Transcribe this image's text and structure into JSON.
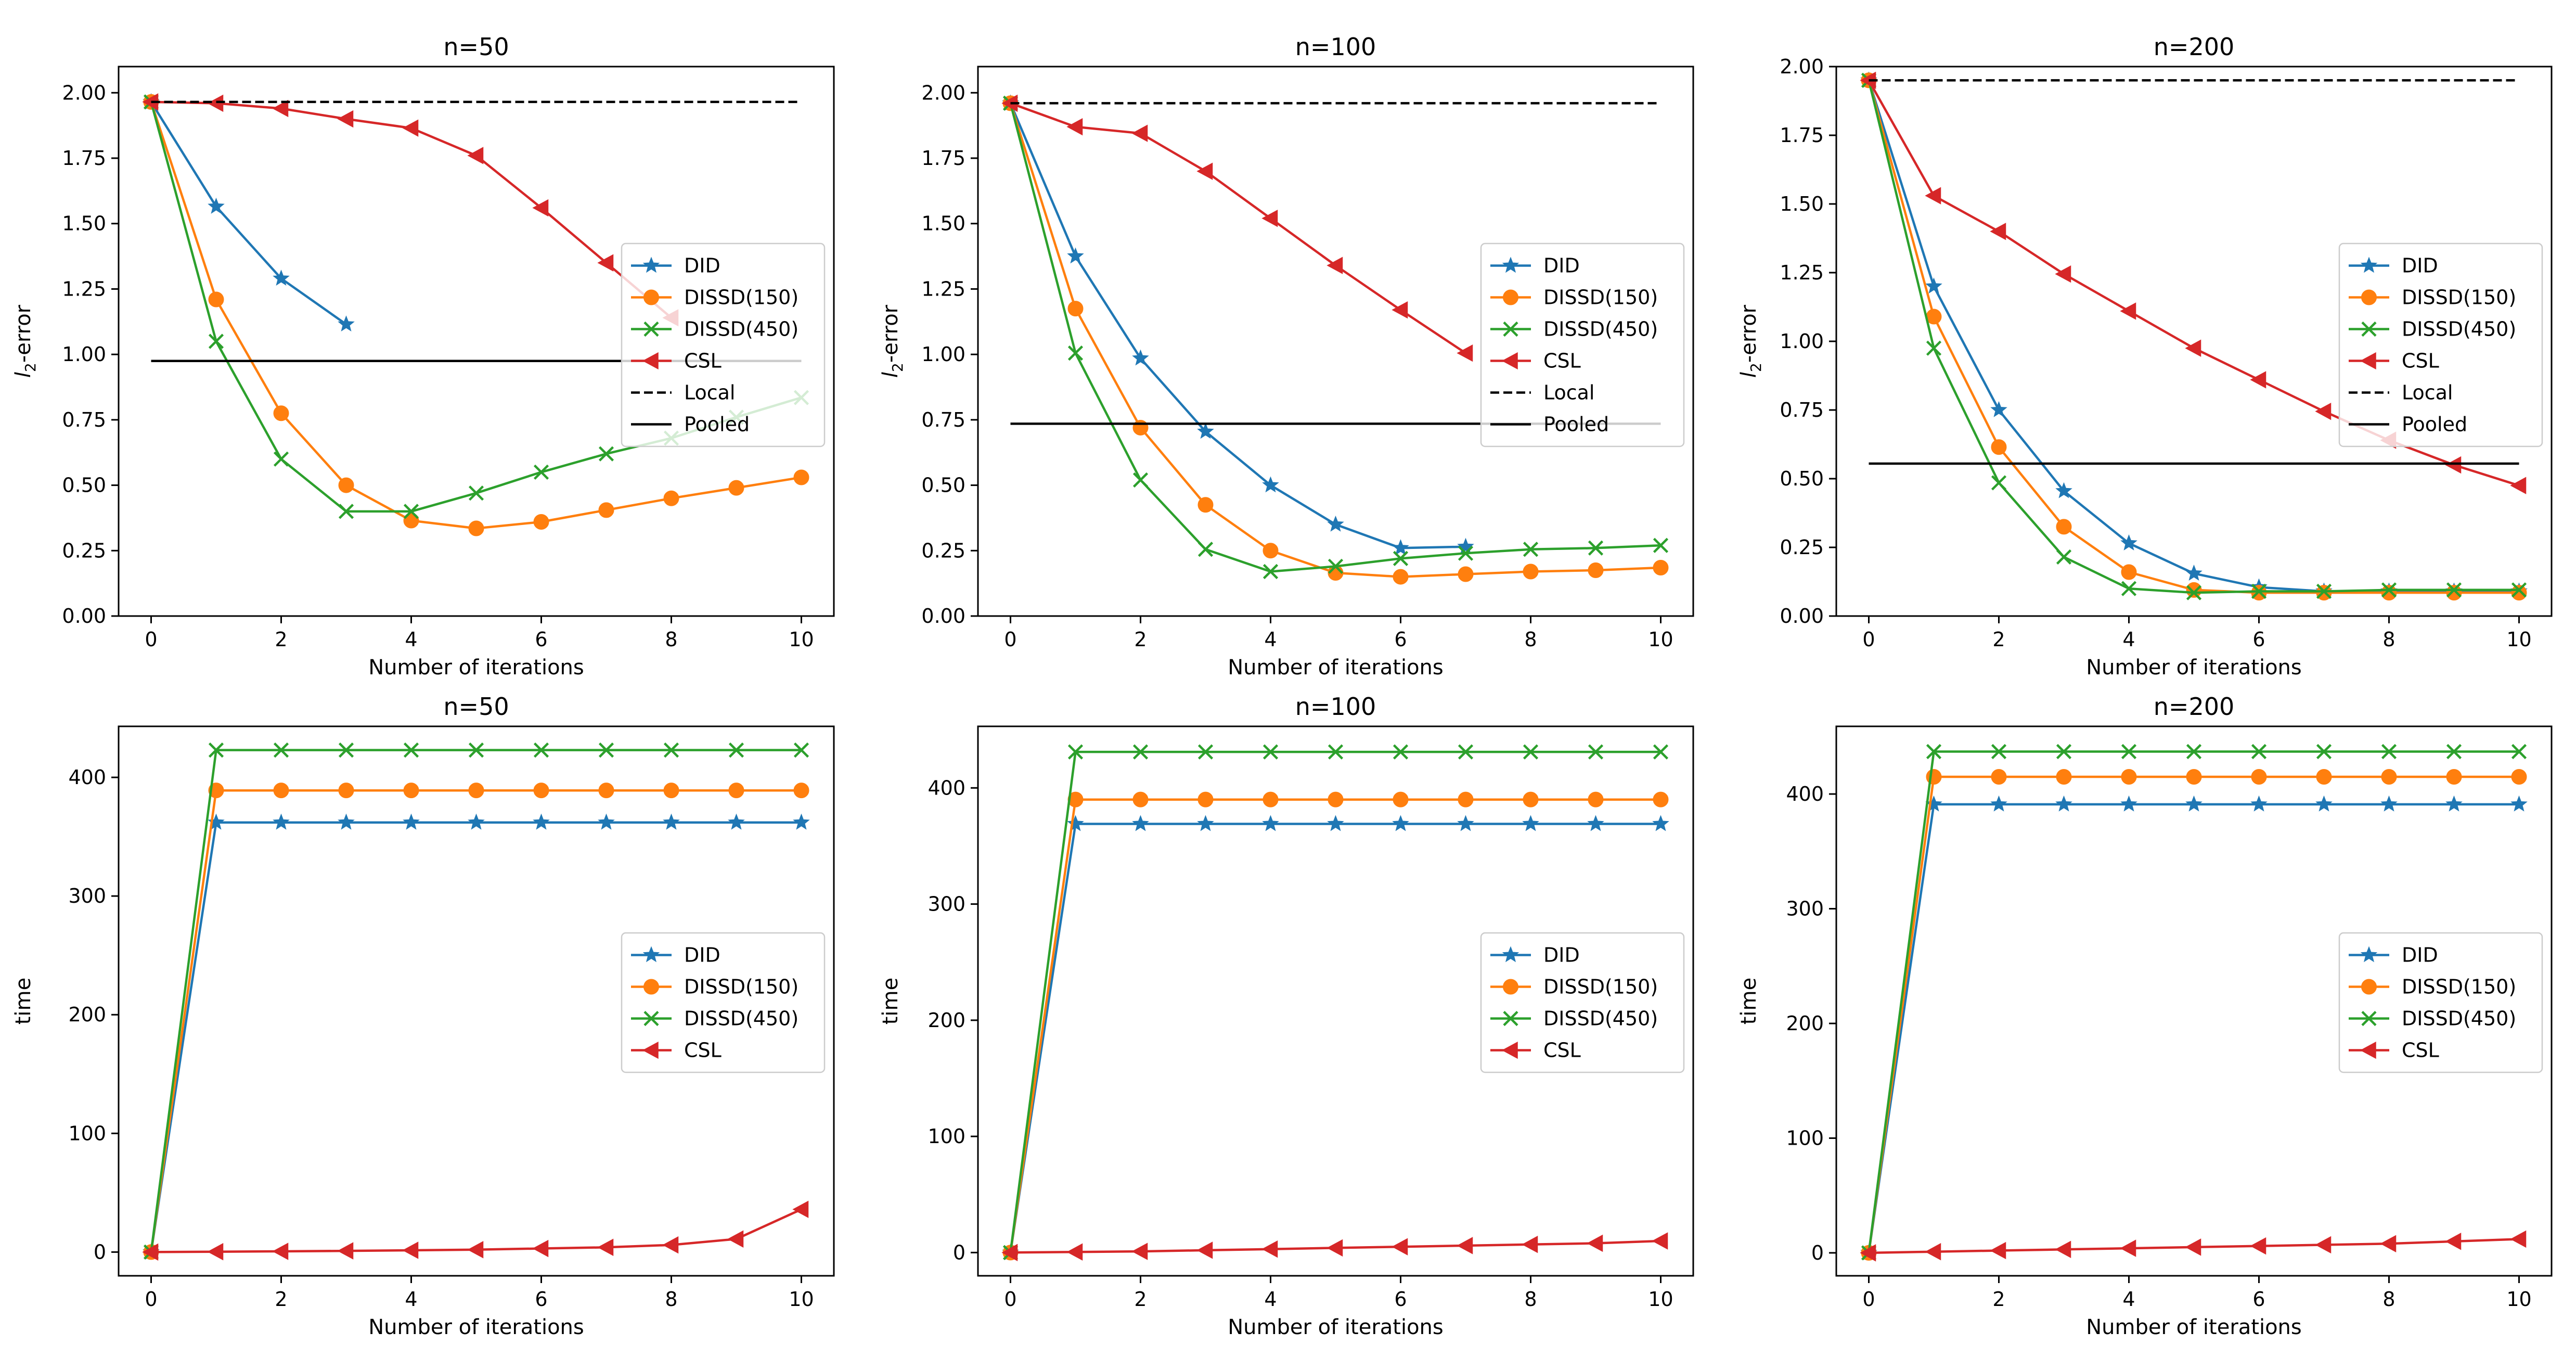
{
  "figure": {
    "colors": {
      "DID": "#1f77b4",
      "DISSD(150)": "#ff7f0e",
      "DISSD(450)": "#2ca02c",
      "CSL": "#d62728",
      "Local": "#000000",
      "Pooled": "#000000"
    },
    "markers": {
      "DID": "star",
      "DISSD(150)": "circle",
      "DISSD(450)": "x",
      "CSL": "triangle-left"
    }
  },
  "chart_data": [
    {
      "type": "line",
      "title": "n=50",
      "xlabel": "Number of iterations",
      "ylabel_main": "l",
      "ylabel_sub": "2",
      "ylabel_suffix": "-error",
      "xlim": [
        -0.5,
        10.5
      ],
      "ylim": [
        0,
        2.1
      ],
      "xticks": [
        0,
        2,
        4,
        6,
        8,
        10
      ],
      "xtick_labels": [
        "0",
        "2",
        "4",
        "6",
        "8",
        "10"
      ],
      "yticks": [
        0,
        0.25,
        0.5,
        0.75,
        1.0,
        1.25,
        1.5,
        1.75,
        2.0
      ],
      "ytick_labels": [
        "0.00",
        "0.25",
        "0.50",
        "0.75",
        "1.00",
        "1.25",
        "1.50",
        "1.75",
        "2.00"
      ],
      "legend_position": "center-right",
      "series": [
        {
          "name": "DID",
          "x": [
            0,
            1,
            2,
            3
          ],
          "values": [
            1.965,
            1.565,
            1.29,
            1.115
          ]
        },
        {
          "name": "DISSD(150)",
          "x": [
            0,
            1,
            2,
            3,
            4,
            5,
            6,
            7,
            8,
            9,
            10
          ],
          "values": [
            1.965,
            1.21,
            0.775,
            0.5,
            0.365,
            0.335,
            0.36,
            0.405,
            0.45,
            0.49,
            0.53
          ]
        },
        {
          "name": "DISSD(450)",
          "x": [
            0,
            1,
            2,
            3,
            4,
            5,
            6,
            7,
            8,
            9,
            10
          ],
          "values": [
            1.965,
            1.05,
            0.6,
            0.4,
            0.4,
            0.47,
            0.55,
            0.62,
            0.68,
            0.76,
            0.835
          ]
        },
        {
          "name": "CSL",
          "x": [
            0,
            1,
            2,
            3,
            4,
            5,
            6,
            7,
            8
          ],
          "values": [
            1.965,
            1.96,
            1.94,
            1.9,
            1.865,
            1.76,
            1.56,
            1.35,
            1.14
          ]
        },
        {
          "name": "Local",
          "x": [
            0,
            10
          ],
          "values": [
            1.965,
            1.965
          ],
          "style": "dashed"
        },
        {
          "name": "Pooled",
          "x": [
            0,
            10
          ],
          "values": [
            0.975,
            0.975
          ],
          "style": "solid"
        }
      ]
    },
    {
      "type": "line",
      "title": "n=100",
      "xlabel": "Number of iterations",
      "ylabel_main": "l",
      "ylabel_sub": "2",
      "ylabel_suffix": "-error",
      "xlim": [
        -0.5,
        10.5
      ],
      "ylim": [
        0,
        2.1
      ],
      "xticks": [
        0,
        2,
        4,
        6,
        8,
        10
      ],
      "xtick_labels": [
        "0",
        "2",
        "4",
        "6",
        "8",
        "10"
      ],
      "yticks": [
        0,
        0.25,
        0.5,
        0.75,
        1.0,
        1.25,
        1.5,
        1.75,
        2.0
      ],
      "ytick_labels": [
        "0.00",
        "0.25",
        "0.50",
        "0.75",
        "1.00",
        "1.25",
        "1.50",
        "1.75",
        "2.00"
      ],
      "legend_position": "center-right",
      "series": [
        {
          "name": "DID",
          "x": [
            0,
            1,
            2,
            3,
            4,
            5,
            6,
            7
          ],
          "values": [
            1.96,
            1.375,
            0.985,
            0.705,
            0.5,
            0.35,
            0.26,
            0.265
          ]
        },
        {
          "name": "DISSD(150)",
          "x": [
            0,
            1,
            2,
            3,
            4,
            5,
            6,
            7,
            8,
            9,
            10
          ],
          "values": [
            1.96,
            1.175,
            0.72,
            0.425,
            0.25,
            0.165,
            0.15,
            0.16,
            0.17,
            0.175,
            0.185
          ]
        },
        {
          "name": "DISSD(450)",
          "x": [
            0,
            1,
            2,
            3,
            4,
            5,
            6,
            7,
            8,
            9,
            10
          ],
          "values": [
            1.96,
            1.005,
            0.52,
            0.255,
            0.17,
            0.19,
            0.22,
            0.24,
            0.255,
            0.26,
            0.27
          ]
        },
        {
          "name": "CSL",
          "x": [
            0,
            1,
            2,
            3,
            4,
            5,
            6,
            7
          ],
          "values": [
            1.96,
            1.87,
            1.845,
            1.7,
            1.52,
            1.34,
            1.17,
            1.005
          ]
        },
        {
          "name": "Local",
          "x": [
            0,
            10
          ],
          "values": [
            1.96,
            1.96
          ],
          "style": "dashed"
        },
        {
          "name": "Pooled",
          "x": [
            0,
            10
          ],
          "values": [
            0.735,
            0.735
          ],
          "style": "solid"
        }
      ]
    },
    {
      "type": "line",
      "title": "n=200",
      "xlabel": "Number of iterations",
      "ylabel_main": "l",
      "ylabel_sub": "2",
      "ylabel_suffix": "-error",
      "xlim": [
        -0.5,
        10.5
      ],
      "ylim": [
        0,
        2.0
      ],
      "xticks": [
        0,
        2,
        4,
        6,
        8,
        10
      ],
      "xtick_labels": [
        "0",
        "2",
        "4",
        "6",
        "8",
        "10"
      ],
      "yticks": [
        0,
        0.25,
        0.5,
        0.75,
        1.0,
        1.25,
        1.5,
        1.75,
        2.0
      ],
      "ytick_labels": [
        "0.00",
        "0.25",
        "0.50",
        "0.75",
        "1.00",
        "1.25",
        "1.50",
        "1.75",
        "2.00"
      ],
      "legend_position": "center-right",
      "series": [
        {
          "name": "DID",
          "x": [
            0,
            1,
            2,
            3,
            4,
            5,
            6,
            7,
            8,
            9,
            10
          ],
          "values": [
            1.95,
            1.2,
            0.75,
            0.455,
            0.265,
            0.155,
            0.105,
            0.09,
            0.09,
            0.09,
            0.09
          ]
        },
        {
          "name": "DISSD(150)",
          "x": [
            0,
            1,
            2,
            3,
            4,
            5,
            6,
            7,
            8,
            9,
            10
          ],
          "values": [
            1.95,
            1.09,
            0.615,
            0.325,
            0.16,
            0.095,
            0.085,
            0.085,
            0.085,
            0.085,
            0.085
          ]
        },
        {
          "name": "DISSD(450)",
          "x": [
            0,
            1,
            2,
            3,
            4,
            5,
            6,
            7,
            8,
            9,
            10
          ],
          "values": [
            1.95,
            0.975,
            0.485,
            0.215,
            0.1,
            0.085,
            0.09,
            0.09,
            0.095,
            0.095,
            0.095
          ]
        },
        {
          "name": "CSL",
          "x": [
            0,
            1,
            2,
            3,
            4,
            5,
            6,
            7,
            8,
            9,
            10
          ],
          "values": [
            1.95,
            1.53,
            1.4,
            1.245,
            1.11,
            0.975,
            0.86,
            0.745,
            0.64,
            0.55,
            0.475
          ]
        },
        {
          "name": "Local",
          "x": [
            0,
            10
          ],
          "values": [
            1.95,
            1.95
          ],
          "style": "dashed"
        },
        {
          "name": "Pooled",
          "x": [
            0,
            10
          ],
          "values": [
            0.555,
            0.555
          ],
          "style": "solid"
        }
      ]
    },
    {
      "type": "line",
      "title": "n=50",
      "xlabel": "Number of iterations",
      "ylabel_main": "time",
      "xlim": [
        -0.5,
        10.5
      ],
      "ylim": [
        -20,
        443
      ],
      "xticks": [
        0,
        2,
        4,
        6,
        8,
        10
      ],
      "xtick_labels": [
        "0",
        "2",
        "4",
        "6",
        "8",
        "10"
      ],
      "yticks": [
        0,
        100,
        200,
        300,
        400
      ],
      "ytick_labels": [
        "0",
        "100",
        "200",
        "300",
        "400"
      ],
      "legend_position": "center-right",
      "series": [
        {
          "name": "DID",
          "x": [
            0,
            1,
            2,
            3,
            4,
            5,
            6,
            7,
            8,
            9,
            10
          ],
          "values": [
            0,
            362,
            362,
            362,
            362,
            362,
            362,
            362,
            362,
            362,
            362
          ]
        },
        {
          "name": "DISSD(150)",
          "x": [
            0,
            1,
            2,
            3,
            4,
            5,
            6,
            7,
            8,
            9,
            10
          ],
          "values": [
            0,
            389,
            389,
            389,
            389,
            389,
            389,
            389,
            389,
            389,
            389
          ]
        },
        {
          "name": "DISSD(450)",
          "x": [
            0,
            1,
            2,
            3,
            4,
            5,
            6,
            7,
            8,
            9,
            10
          ],
          "values": [
            0,
            423,
            423,
            423,
            423,
            423,
            423,
            423,
            423,
            423,
            423
          ]
        },
        {
          "name": "CSL",
          "x": [
            0,
            1,
            2,
            3,
            4,
            5,
            6,
            7,
            8,
            9,
            10
          ],
          "values": [
            0,
            0.3,
            0.6,
            1,
            1.5,
            2,
            3,
            4,
            6,
            11,
            36
          ]
        }
      ]
    },
    {
      "type": "line",
      "title": "n=100",
      "xlabel": "Number of iterations",
      "ylabel_main": "time",
      "xlim": [
        -0.5,
        10.5
      ],
      "ylim": [
        -20,
        453
      ],
      "xticks": [
        0,
        2,
        4,
        6,
        8,
        10
      ],
      "xtick_labels": [
        "0",
        "2",
        "4",
        "6",
        "8",
        "10"
      ],
      "yticks": [
        0,
        100,
        200,
        300,
        400
      ],
      "ytick_labels": [
        "0",
        "100",
        "200",
        "300",
        "400"
      ],
      "legend_position": "center-right",
      "series": [
        {
          "name": "DID",
          "x": [
            0,
            1,
            2,
            3,
            4,
            5,
            6,
            7,
            8,
            9,
            10
          ],
          "values": [
            0,
            369,
            369,
            369,
            369,
            369,
            369,
            369,
            369,
            369,
            369
          ]
        },
        {
          "name": "DISSD(150)",
          "x": [
            0,
            1,
            2,
            3,
            4,
            5,
            6,
            7,
            8,
            9,
            10
          ],
          "values": [
            0,
            390,
            390,
            390,
            390,
            390,
            390,
            390,
            390,
            390,
            390
          ]
        },
        {
          "name": "DISSD(450)",
          "x": [
            0,
            1,
            2,
            3,
            4,
            5,
            6,
            7,
            8,
            9,
            10
          ],
          "values": [
            0,
            431,
            431,
            431,
            431,
            431,
            431,
            431,
            431,
            431,
            431
          ]
        },
        {
          "name": "CSL",
          "x": [
            0,
            1,
            2,
            3,
            4,
            5,
            6,
            7,
            8,
            9,
            10
          ],
          "values": [
            0,
            0.5,
            1,
            2,
            3,
            4,
            5,
            6,
            7,
            8,
            10
          ]
        }
      ]
    },
    {
      "type": "line",
      "title": "n=200",
      "xlabel": "Number of iterations",
      "ylabel_main": "time",
      "xlim": [
        -0.5,
        10.5
      ],
      "ylim": [
        -20,
        459
      ],
      "xticks": [
        0,
        2,
        4,
        6,
        8,
        10
      ],
      "xtick_labels": [
        "0",
        "2",
        "4",
        "6",
        "8",
        "10"
      ],
      "yticks": [
        0,
        100,
        200,
        300,
        400
      ],
      "ytick_labels": [
        "0",
        "100",
        "200",
        "300",
        "400"
      ],
      "legend_position": "center-right",
      "series": [
        {
          "name": "DID",
          "x": [
            0,
            1,
            2,
            3,
            4,
            5,
            6,
            7,
            8,
            9,
            10
          ],
          "values": [
            0,
            391,
            391,
            391,
            391,
            391,
            391,
            391,
            391,
            391,
            391
          ]
        },
        {
          "name": "DISSD(150)",
          "x": [
            0,
            1,
            2,
            3,
            4,
            5,
            6,
            7,
            8,
            9,
            10
          ],
          "values": [
            0,
            415,
            415,
            415,
            415,
            415,
            415,
            415,
            415,
            415,
            415
          ]
        },
        {
          "name": "DISSD(450)",
          "x": [
            0,
            1,
            2,
            3,
            4,
            5,
            6,
            7,
            8,
            9,
            10
          ],
          "values": [
            0,
            437,
            437,
            437,
            437,
            437,
            437,
            437,
            437,
            437,
            437
          ]
        },
        {
          "name": "CSL",
          "x": [
            0,
            1,
            2,
            3,
            4,
            5,
            6,
            7,
            8,
            9,
            10
          ],
          "values": [
            0,
            1,
            2,
            3,
            4,
            5,
            6,
            7,
            8,
            10,
            12
          ]
        }
      ]
    }
  ]
}
